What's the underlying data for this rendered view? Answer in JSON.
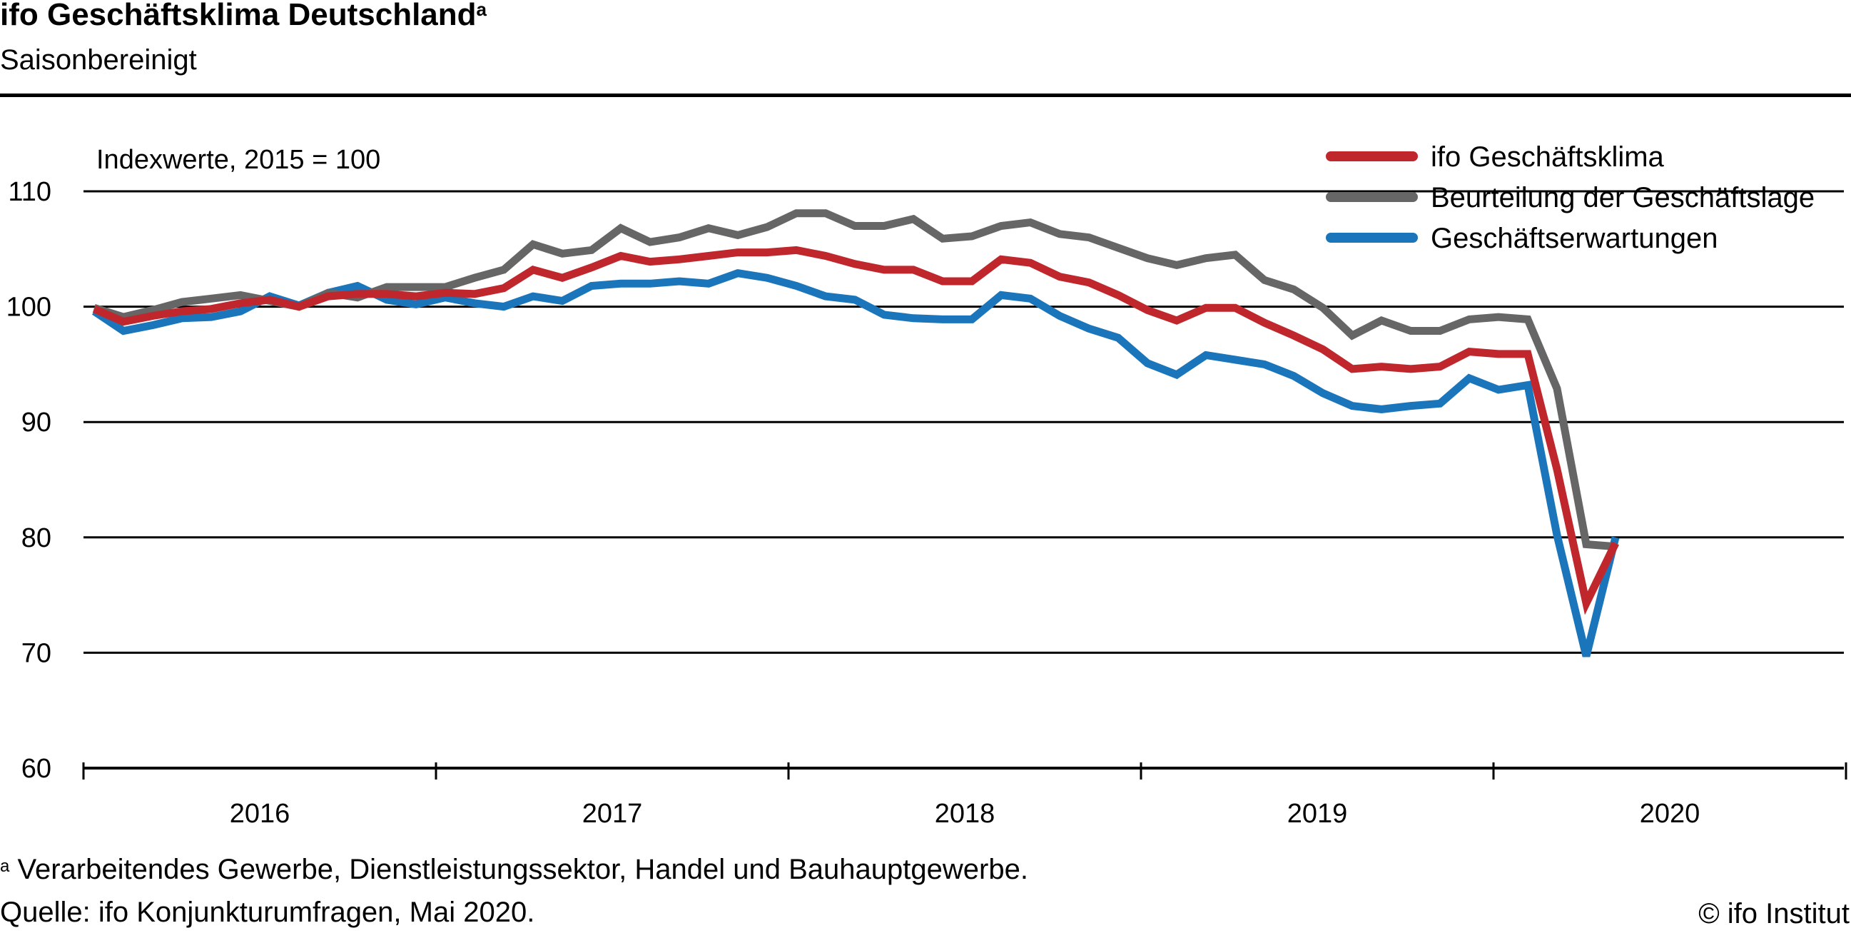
{
  "header": {
    "title": "ifo Geschäftsklima Deutschland",
    "title_sup": "a",
    "subtitle": "Saisonbereinigt"
  },
  "footer": {
    "footnote_sup": "a",
    "footnote": "Verarbeitendes Gewerbe, Dienstleistungssektor, Handel und Bauhauptgewerbe.",
    "source": "Quelle: ifo Konjunkturumfragen, Mai 2020.",
    "copyright": "© ifo Institut"
  },
  "chart_data": {
    "type": "line",
    "unit_label": "Indexwerte, 2015 = 100",
    "ylim": [
      60,
      110
    ],
    "yticks": [
      "60",
      "70",
      "80",
      "90",
      "100",
      "110"
    ],
    "year_labels": [
      "2016",
      "2017",
      "2018",
      "2019",
      "2020"
    ],
    "x_start": "2016-01",
    "x_end": "2020-12",
    "grid": true,
    "legend_position": "top-right",
    "series": [
      {
        "name": "ifo Geschäftsklima",
        "color": "#c0272d",
        "values": [
          99.8,
          98.7,
          99.2,
          99.6,
          99.8,
          100.3,
          100.6,
          100.0,
          100.9,
          101.1,
          101.1,
          100.9,
          101.2,
          101.1,
          101.6,
          103.2,
          102.5,
          103.4,
          104.4,
          103.9,
          104.1,
          104.4,
          104.7,
          104.7,
          104.9,
          104.4,
          103.7,
          103.2,
          103.2,
          102.2,
          102.2,
          104.1,
          103.8,
          102.6,
          102.1,
          101.0,
          99.7,
          98.8,
          99.9,
          99.9,
          98.6,
          97.5,
          96.3,
          94.6,
          94.8,
          94.6,
          94.8,
          96.1,
          95.9,
          95.9,
          85.9,
          74.3,
          79.5
        ]
      },
      {
        "name": "Beurteilung der Geschäftslage",
        "color": "#666666",
        "values": [
          99.9,
          99.1,
          99.7,
          100.4,
          100.7,
          101.0,
          100.5,
          100.0,
          101.2,
          100.8,
          101.7,
          101.7,
          101.7,
          102.5,
          103.2,
          105.4,
          104.6,
          104.9,
          106.8,
          105.6,
          106.0,
          106.8,
          106.2,
          106.9,
          108.1,
          108.1,
          107.0,
          107.0,
          107.6,
          105.9,
          106.1,
          107.0,
          107.3,
          106.3,
          106.0,
          105.1,
          104.2,
          103.6,
          104.2,
          104.5,
          102.3,
          101.5,
          99.9,
          97.5,
          98.8,
          97.9,
          97.9,
          98.9,
          99.1,
          98.9,
          92.9,
          79.4,
          79.2
        ]
      },
      {
        "name": "Geschäftserwartungen",
        "color": "#1a75bb",
        "values": [
          99.6,
          97.9,
          98.4,
          99.0,
          99.1,
          99.6,
          100.9,
          100.1,
          101.2,
          101.8,
          100.6,
          100.2,
          100.8,
          100.3,
          100.0,
          100.9,
          100.5,
          101.8,
          102.0,
          102.0,
          102.2,
          102.0,
          102.9,
          102.5,
          101.8,
          100.9,
          100.6,
          99.3,
          99.0,
          98.9,
          98.9,
          101.0,
          100.7,
          99.2,
          98.1,
          97.3,
          95.1,
          94.1,
          95.8,
          95.4,
          95.0,
          94.0,
          92.5,
          91.4,
          91.1,
          91.4,
          91.6,
          93.8,
          92.8,
          93.2,
          80.2,
          69.7,
          80.0
        ]
      }
    ]
  }
}
